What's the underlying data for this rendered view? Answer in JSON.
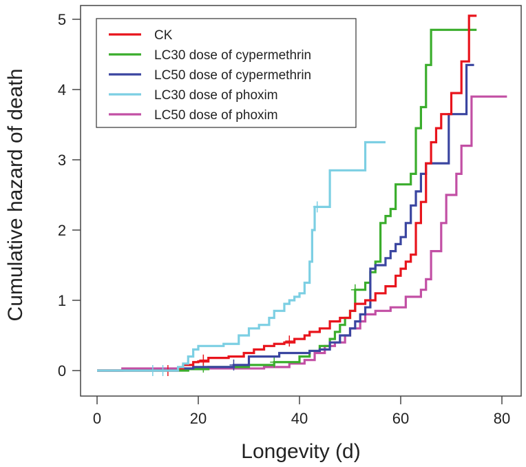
{
  "chart_data": {
    "type": "line",
    "step": true,
    "title": "",
    "xlabel": "Longevity (d)",
    "ylabel": "Cumulative hazard of death",
    "xlim": [
      0,
      82
    ],
    "ylim": [
      0,
      5
    ],
    "xticks": [
      0,
      20,
      40,
      60,
      80
    ],
    "yticks": [
      0,
      1,
      2,
      3,
      4,
      5
    ],
    "grid": false,
    "legend_position": "top-left",
    "series": [
      {
        "name": "CK",
        "color": "#e8141c",
        "points": [
          [
            0,
            0
          ],
          [
            16,
            0.03
          ],
          [
            17,
            0.08
          ],
          [
            19,
            0.12
          ],
          [
            20,
            0.13
          ],
          [
            22,
            0.18
          ],
          [
            26,
            0.2
          ],
          [
            29,
            0.25
          ],
          [
            31,
            0.3
          ],
          [
            33,
            0.35
          ],
          [
            35,
            0.38
          ],
          [
            37,
            0.4
          ],
          [
            39,
            0.45
          ],
          [
            41,
            0.5
          ],
          [
            42,
            0.55
          ],
          [
            44,
            0.6
          ],
          [
            46,
            0.7
          ],
          [
            48,
            0.75
          ],
          [
            50,
            0.85
          ],
          [
            51,
            0.95
          ],
          [
            53,
            1.0
          ],
          [
            55,
            1.1
          ],
          [
            57,
            1.2
          ],
          [
            59,
            1.35
          ],
          [
            60,
            1.45
          ],
          [
            61,
            1.55
          ],
          [
            62,
            1.65
          ],
          [
            63,
            2.1
          ],
          [
            64,
            2.4
          ],
          [
            65,
            2.95
          ],
          [
            66,
            3.25
          ],
          [
            67,
            3.45
          ],
          [
            68,
            3.65
          ],
          [
            70,
            3.95
          ],
          [
            72,
            4.4
          ],
          [
            73.5,
            5.05
          ],
          [
            75,
            5.05
          ]
        ],
        "censored": [
          [
            14,
            0.0
          ],
          [
            21,
            0.15
          ],
          [
            38,
            0.42
          ]
        ]
      },
      {
        "name": "LC30 dose of cypermethrin",
        "color": "#3aad2c",
        "points": [
          [
            0,
            0
          ],
          [
            18,
            0.02
          ],
          [
            22,
            0.05
          ],
          [
            30,
            0.08
          ],
          [
            35,
            0.12
          ],
          [
            40,
            0.2
          ],
          [
            42,
            0.28
          ],
          [
            44,
            0.35
          ],
          [
            46,
            0.45
          ],
          [
            47,
            0.55
          ],
          [
            48,
            0.65
          ],
          [
            49,
            0.75
          ],
          [
            50,
            0.85
          ],
          [
            51,
            1.15
          ],
          [
            53,
            1.25
          ],
          [
            54,
            1.4
          ],
          [
            55,
            1.55
          ],
          [
            56,
            2.1
          ],
          [
            57,
            2.2
          ],
          [
            58,
            2.3
          ],
          [
            59,
            2.65
          ],
          [
            62,
            2.8
          ],
          [
            63,
            3.45
          ],
          [
            64,
            3.75
          ],
          [
            65,
            4.35
          ],
          [
            66,
            4.85
          ],
          [
            75,
            4.85
          ]
        ],
        "censored": [
          [
            21,
            0.05
          ],
          [
            35,
            0.12
          ],
          [
            51,
            1.15
          ]
        ]
      },
      {
        "name": "LC50 dose of cypermethrin",
        "color": "#3a45a0",
        "points": [
          [
            0,
            0
          ],
          [
            16,
            0.03
          ],
          [
            19,
            0.05
          ],
          [
            27,
            0.08
          ],
          [
            30,
            0.2
          ],
          [
            36,
            0.25
          ],
          [
            42,
            0.28
          ],
          [
            44,
            0.3
          ],
          [
            46,
            0.4
          ],
          [
            48,
            0.5
          ],
          [
            50,
            0.6
          ],
          [
            51,
            0.7
          ],
          [
            52,
            0.8
          ],
          [
            53,
            0.9
          ],
          [
            54,
            1.45
          ],
          [
            55,
            1.5
          ],
          [
            57,
            1.6
          ],
          [
            58,
            1.7
          ],
          [
            59,
            1.8
          ],
          [
            60,
            1.9
          ],
          [
            61,
            2.1
          ],
          [
            62,
            2.35
          ],
          [
            63,
            2.55
          ],
          [
            64,
            2.8
          ],
          [
            65,
            2.95
          ],
          [
            69.5,
            3.65
          ],
          [
            73,
            4.35
          ],
          [
            74.5,
            4.35
          ]
        ],
        "censored": [
          [
            27,
            0.08
          ]
        ]
      },
      {
        "name": "LC30 dose of phoxim",
        "color": "#7ccfe3",
        "points": [
          [
            0,
            0
          ],
          [
            16,
            0.05
          ],
          [
            17,
            0.1
          ],
          [
            18,
            0.2
          ],
          [
            19,
            0.3
          ],
          [
            20,
            0.35
          ],
          [
            25,
            0.38
          ],
          [
            28,
            0.5
          ],
          [
            30,
            0.6
          ],
          [
            32,
            0.65
          ],
          [
            34,
            0.75
          ],
          [
            35,
            0.85
          ],
          [
            37,
            0.95
          ],
          [
            38,
            1.0
          ],
          [
            39,
            1.05
          ],
          [
            40,
            1.1
          ],
          [
            41,
            1.25
          ],
          [
            42,
            1.55
          ],
          [
            42.5,
            2.0
          ],
          [
            43,
            2.33
          ],
          [
            44.5,
            2.33
          ],
          [
            46,
            2.85
          ],
          [
            53,
            3.25
          ],
          [
            57,
            3.25
          ]
        ],
        "censored": [
          [
            11,
            0
          ],
          [
            13,
            0
          ],
          [
            43.5,
            2.33
          ]
        ]
      },
      {
        "name": "LC50 dose of phoxim",
        "color": "#c24fa4",
        "points": [
          [
            0,
            0
          ],
          [
            5,
            0.03
          ],
          [
            33,
            0.05
          ],
          [
            38,
            0.1
          ],
          [
            41,
            0.15
          ],
          [
            43,
            0.25
          ],
          [
            45,
            0.35
          ],
          [
            47,
            0.4
          ],
          [
            49,
            0.5
          ],
          [
            50,
            0.6
          ],
          [
            52,
            0.7
          ],
          [
            53,
            0.8
          ],
          [
            55,
            0.85
          ],
          [
            58,
            0.9
          ],
          [
            61,
            1.05
          ],
          [
            64,
            1.15
          ],
          [
            65,
            1.3
          ],
          [
            66,
            1.7
          ],
          [
            68,
            2.1
          ],
          [
            69,
            2.5
          ],
          [
            71,
            2.8
          ],
          [
            72,
            3.2
          ],
          [
            74,
            3.9
          ],
          [
            81,
            3.9
          ]
        ],
        "censored": []
      }
    ]
  }
}
